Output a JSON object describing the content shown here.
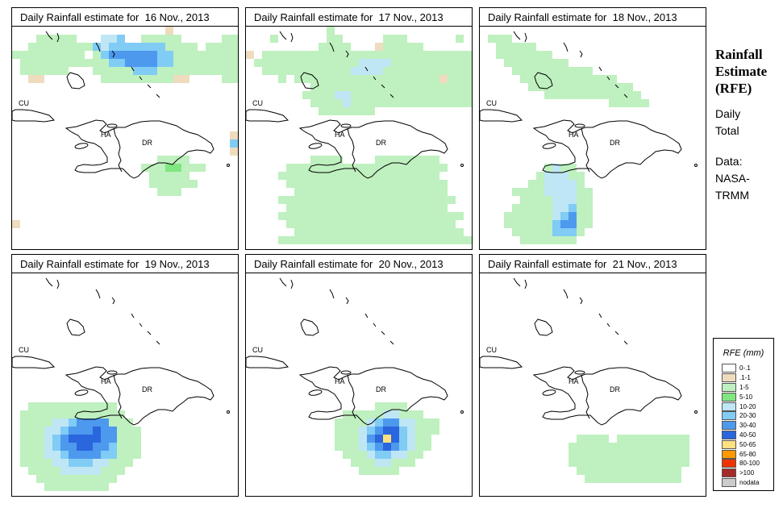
{
  "panels": [
    {
      "title": "Daily Rainfall estimate for  16 Nov., 2013",
      "date": "16 Nov., 2013"
    },
    {
      "title": "Daily Rainfall estimate for  17 Nov., 2013",
      "date": "17 Nov., 2013"
    },
    {
      "title": "Daily Rainfall estimate for  18 Nov., 2013",
      "date": "18 Nov., 2013"
    },
    {
      "title": "Daily Rainfall estimate for  19 Nov., 2013",
      "date": "19 Nov., 2013"
    },
    {
      "title": "Daily Rainfall estimate for  20 Nov., 2013",
      "date": "20 Nov., 2013"
    },
    {
      "title": "Daily Rainfall estimate for  21 Nov., 2013",
      "date": "21 Nov., 2013"
    }
  ],
  "map_labels": {
    "cuba": "CU",
    "haiti": "HA",
    "dominican_republic": "DR"
  },
  "sidebar": {
    "title_line1": "Rainfall",
    "title_line2": "Estimate",
    "title_line3": "(RFE)",
    "subtitle_line1": "Daily",
    "subtitle_line2": "Total",
    "source_line1": "Data:",
    "source_line2": "NASA-",
    "source_line3": "TRMM"
  },
  "legend": {
    "title": "RFE (mm)",
    "items": [
      {
        "label": "0-.1",
        "color": "#ffffff"
      },
      {
        "label": ".1-1",
        "color": "#efdcbf"
      },
      {
        "label": "1-5",
        "color": "#bff0bf"
      },
      {
        "label": "5-10",
        "color": "#80e680"
      },
      {
        "label": "10-20",
        "color": "#bfe6f5"
      },
      {
        "label": "20-30",
        "color": "#80ccf5"
      },
      {
        "label": "30-40",
        "color": "#4d99ee"
      },
      {
        "label": "40-50",
        "color": "#2a66dd"
      },
      {
        "label": "50-65",
        "color": "#ffe080"
      },
      {
        "label": "65-80",
        "color": "#ff9900"
      },
      {
        "label": "80-100",
        "color": "#ee3300"
      },
      {
        "label": ">100",
        "color": "#a52a2a"
      },
      {
        "label": "nodata",
        "color": "#cccccc"
      }
    ]
  },
  "grids": [
    [
      "0000000000000000000100000000",
      "0002222200044500222220000022",
      "0022222222545555555222202222",
      "2222222220256666665522222222",
      "0222222222225566665522222222",
      "0222222000222225552222222222",
      "0011000000022222222211000022",
      "0000000000000000000000000000",
      "0000000000000000000000000000",
      "0000000000000000000000000000",
      "0000000000000000000000000000",
      "0000000000000000000000000000",
      "0000000000000000000000000000",
      "0000000000000000000000000001",
      "0000000000000000000000000005",
      "0000000000000000000000000001",
      "0000000000000000002222000000",
      "0000000000000000222332220000",
      "0000000000000000022222000000",
      "0000000000000000022222200000",
      "0000000000000000002220000000",
      "0000000000000000000000000000",
      "0000000000000000000000000000",
      "0000000000000000000000000000",
      "1000000000000000000000000000",
      "0000000000000000000000000000",
      "0000000000000000000000000000"
    ],
    [
      "0000000000200000000000000000",
      "0002000000220000022200000020",
      "0000000002222000122222000000",
      "1022222222222222222222222222",
      "0222222222222244442222222222",
      "0022222222222444422222222222",
      "0000202222222222222222221222",
      "0000000022222222222222222222",
      "0000000222244222222222222222",
      "0000000022224222222222222222",
      "0000000002222222000000000000",
      "0000000000000000000000000000",
      "0000000000000000000000000000",
      "0000000000000000000000000000",
      "0000000000000000000000000000",
      "0000000000000000000000000000",
      "0000000022220000222222220000",
      "0000022222222222222222222000",
      "0000222222222222222222220000",
      "0000022222222222222222222000",
      "0000002222222222222222222000",
      "0000222222222222222222222200",
      "0000022222222222222222222000",
      "0000222222222222222222222220",
      "0000022222222222222222222200",
      "0000002222222222222222222220",
      "0000222222222222222222222222"
    ],
    [
      "0000000000000000000000000000",
      "0222000000000000000000000000",
      "0022222000000000000000000000",
      "0022222220000000000000000000",
      "0002222222200000000000000000",
      "0000222222222200000000000000",
      "0000022222222222200000000000",
      "0000002222222222222000000000",
      "0000000022222222222200000000",
      "0000000000000000222220000000",
      "0000000000000000000000000000",
      "0000000000000000000000000000",
      "0000000000000000000000000000",
      "0000000000000000000000000000",
      "0000000000000000000000000000",
      "0000000000000000000000000000",
      "0000000000000000000000000000",
      "0000000024220000000000000000",
      "0000000244422000000000000000",
      "0000002244442000000000000000",
      "0000222244442200000000000000",
      "0000022224442200000000000000",
      "0000222224452200000000000000",
      "0002222224562200000000000000",
      "0002222225662200000000000000",
      "0000222225552000000000000000",
      "0000022222220000000000000000"
    ],
    [
      "0000000000000000000000000000",
      "0000000000000000000000000000",
      "0000000000000000000000000000",
      "0000000000000000000000000000",
      "0000000000000000000000000000",
      "0000000000000000000000000000",
      "0000000000000000000000000000",
      "0000000000000000000000000000",
      "0000000000000000000000000000",
      "0000000000000000000000000000",
      "0000000000000000000000000000",
      "0000000000000000000000000000",
      "0000000000000000000000000000",
      "0000000000000000000000000000",
      "0000000000000000000000000000",
      "0000000000000000000000000000",
      "0022222222222000000000000000",
      "0222222222222200000000000000",
      "0222244566662220000000000000",
      "0222445666766222000000000000",
      "0222456777766222000000000000",
      "0222456677665222000000000000",
      "0222445666655222000000000000",
      "0222244555442220000000000000",
      "0022224444422200000000000000",
      "0002222222222000000000000000",
      "0000222222220000000000000000"
    ],
    [
      "0000000000000000000000000000",
      "0000000000000000000000000000",
      "0000000000000000000000000000",
      "0000000000000000000000000000",
      "0000000000000000000000000000",
      "0000000000000000000000000000",
      "0000000000000000000000000000",
      "0000000000000000000000000000",
      "0000000000000000000000000000",
      "0000000000000000000000000000",
      "0000000000000000000000000000",
      "0000000000000000000000000000",
      "0000000000000000000000000000",
      "0000000000000000000000000000",
      "0000000000000000000000000000",
      "0000000000000000000000000000",
      "0000000000000000222200000000",
      "0000000000002222244222000000",
      "0000000000022224566442220000",
      "0000000000022245677542220000",
      "0000000000022246787542200000",
      "0000000000022245676542200000",
      "0000000000002224554422000000",
      "0000000000000222442220000000",
      "0000000000000022222000000000",
      "0000000000000000000000000000",
      "0000000000000000000000000000"
    ],
    [
      "0000000000000000000000000000",
      "0000000000000000000000000000",
      "0000000000000000000000000000",
      "0000000000000000000000000000",
      "0000000000000000000000000000",
      "0000000000000000000000000000",
      "0000000000000000000000000000",
      "0000000000000000000000000000",
      "0000000000000000000000000000",
      "0000000000000000000000000000",
      "0000000000000000000000000000",
      "0000000000000000000000000000",
      "0000000000000000000000000000",
      "0000000000000000000000000000",
      "0000000000000000000000000000",
      "0000000000000000000000000000",
      "0000000000000000000000000000",
      "0000000000000000000000000000",
      "0000000000000000000000000000",
      "0000000000000000000000000000",
      "0000000000002222022222222200",
      "0000000000022222222222222200",
      "0000000000022222222222222200",
      "0000000000022222222222222200",
      "0000000000002222222222222000",
      "0000000000000222222222222000",
      "0000000000000000000000000000"
    ]
  ]
}
